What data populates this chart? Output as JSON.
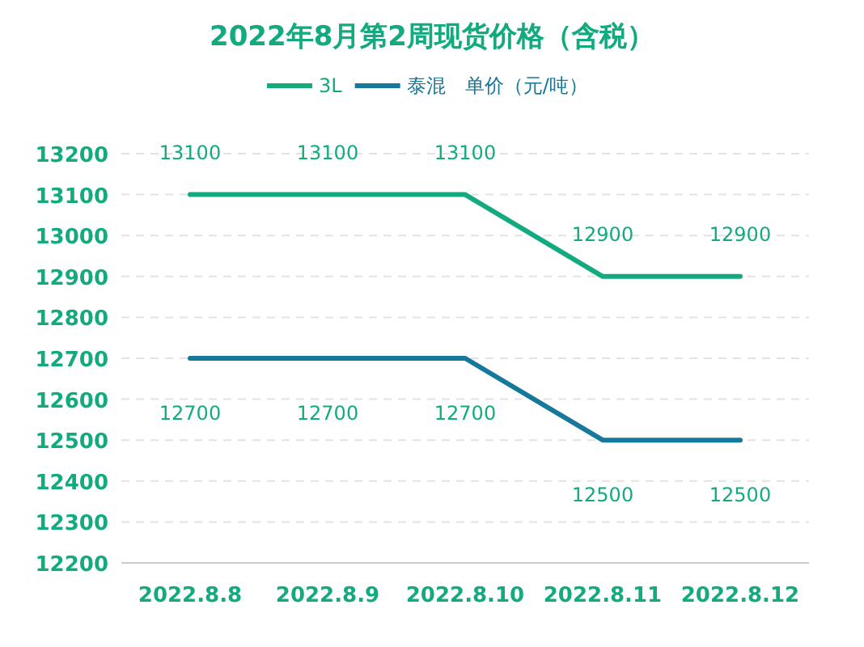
{
  "chart_data": {
    "type": "line",
    "title": "2022年8月第2周现货价格（含税）",
    "ylabel": "单价（元/吨）",
    "categories": [
      "2022.8.8",
      "2022.8.9",
      "2022.8.10",
      "2022.8.11",
      "2022.8.12"
    ],
    "series": [
      {
        "name": "3L",
        "color": "#13aa80",
        "values": [
          13100,
          13100,
          13100,
          12900,
          12900
        ]
      },
      {
        "name": "泰混",
        "color": "#16789a",
        "values": [
          12700,
          12700,
          12700,
          12500,
          12500
        ]
      }
    ],
    "ylim": [
      12200,
      13200
    ],
    "yticks": [
      12200,
      12300,
      12400,
      12500,
      12600,
      12700,
      12800,
      12900,
      13000,
      13100,
      13200
    ],
    "grid": "y",
    "legend": "top",
    "data_labels": true,
    "marker": "none",
    "line_style": "solid"
  }
}
